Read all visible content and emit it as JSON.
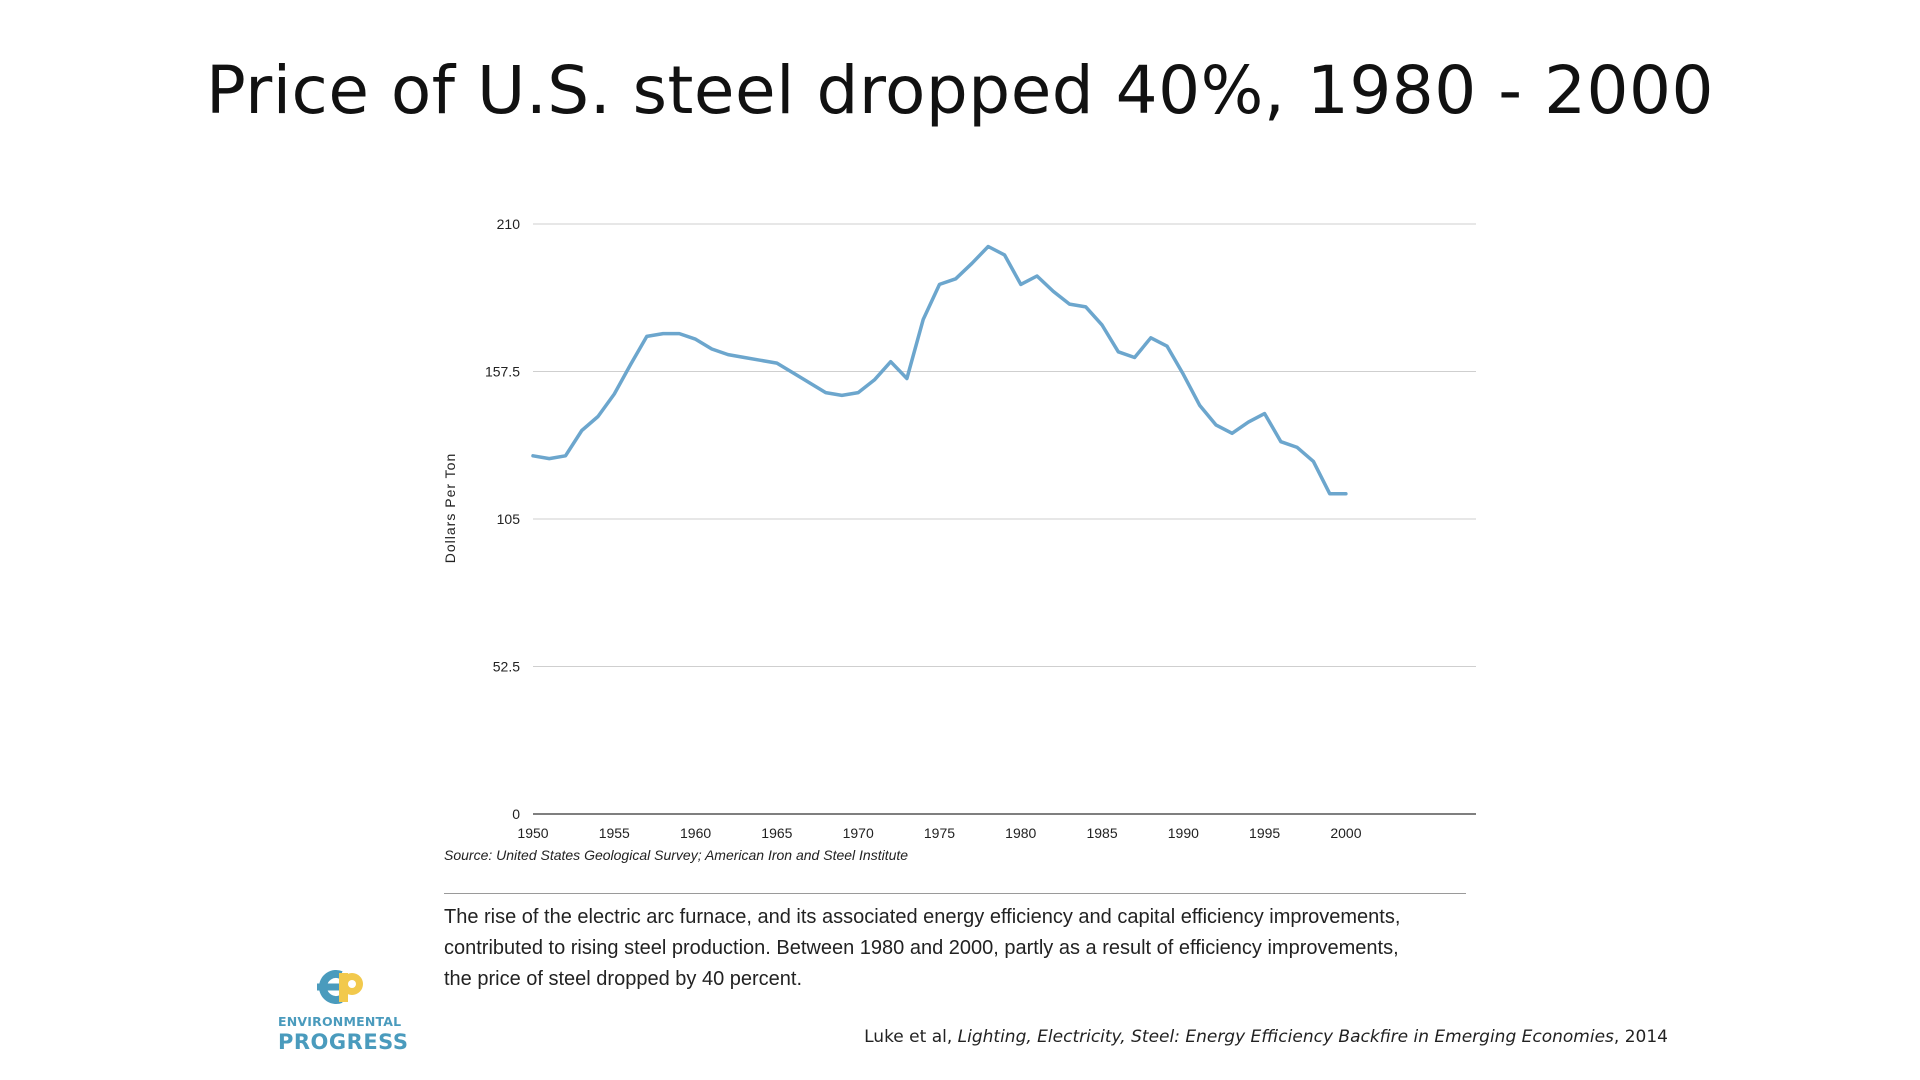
{
  "slide": {
    "title": "Price of U.S. steel dropped 40%, 1980 - 2000"
  },
  "chart_data": {
    "type": "line",
    "title": "",
    "xlabel": "",
    "ylabel": "Dollars Per Ton",
    "ylim": [
      0,
      210
    ],
    "xlim": [
      1950,
      2008
    ],
    "yticks": [
      0,
      52.5,
      105,
      157.5,
      210
    ],
    "ytick_labels": [
      "0",
      "52.5",
      "105",
      "157.5",
      "210"
    ],
    "xticks": [
      1950,
      1955,
      1960,
      1965,
      1970,
      1975,
      1980,
      1985,
      1990,
      1995,
      2000
    ],
    "xtick_labels": [
      "1950",
      "1955",
      "1960",
      "1965",
      "1970",
      "1975",
      "1980",
      "1985",
      "1990",
      "1995",
      "2000"
    ],
    "grid": true,
    "line_color": "#6ca6cd",
    "series": [
      {
        "name": "Price of U.S. steel",
        "x": [
          1950,
          1951,
          1952,
          1953,
          1954,
          1955,
          1956,
          1957,
          1958,
          1959,
          1960,
          1961,
          1962,
          1963,
          1964,
          1965,
          1966,
          1967,
          1968,
          1969,
          1970,
          1971,
          1972,
          1973,
          1974,
          1975,
          1976,
          1977,
          1978,
          1979,
          1980,
          1981,
          1982,
          1983,
          1984,
          1985,
          1986,
          1987,
          1988,
          1989,
          1990,
          1991,
          1992,
          1993,
          1994,
          1995,
          1996,
          1997,
          1998,
          1999,
          2000
        ],
        "values": [
          127.5,
          126.5,
          127.5,
          136.5,
          141.5,
          149.5,
          160,
          170,
          171,
          171,
          169,
          165.5,
          163.5,
          162.5,
          161.5,
          160.5,
          157,
          153.5,
          150,
          149,
          150,
          154.5,
          161,
          155,
          176,
          188.5,
          190.5,
          196,
          202,
          199,
          188.5,
          191.5,
          186,
          181.5,
          180.5,
          174,
          164.5,
          162.5,
          169.5,
          166.5,
          156.5,
          145.5,
          138.5,
          135.5,
          139.5,
          142.5,
          132.5,
          130.5,
          125.5,
          114,
          114
        ]
      }
    ],
    "source": "Source: United States Geological Survey; American Iron and Steel Institute"
  },
  "caption": {
    "line1": "The rise of the electric arc furnace, and its associated energy efficiency and capital efficiency improvements,",
    "line2": "contributed to rising steel production. Between 1980 and 2000, partly as a result of efficiency improvements,",
    "line3": "the price of steel dropped by 40 percent."
  },
  "logo": {
    "line1": "ENVIRONMENTAL",
    "line2": "PROGRESS",
    "colors": {
      "blue": "#4a9bbd",
      "yellow": "#f2c94c"
    }
  },
  "citation": {
    "authors": "Luke et al, ",
    "title": "Lighting, Electricity, Steel: Energy Efficiency Backfire in Emerging Economies",
    "year": ", 2014"
  }
}
